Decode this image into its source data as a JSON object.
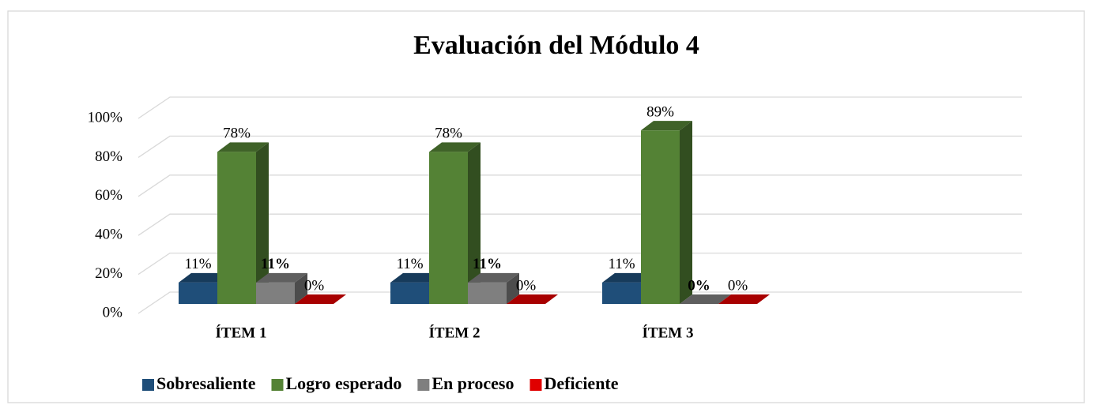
{
  "chart_data": {
    "type": "bar3d",
    "title": "Evaluación del Módulo 4",
    "categories": [
      "ÍTEM 1",
      "ÍTEM 2",
      "ÍTEM 3"
    ],
    "series": [
      {
        "name": "Sobresaliente",
        "color": "#1f4e79",
        "values": [
          11,
          11,
          11
        ],
        "value_labels": [
          "11%",
          "11%",
          "11%"
        ]
      },
      {
        "name": "Logro esperado",
        "color": "#548235",
        "values": [
          78,
          78,
          89
        ],
        "value_labels": [
          "78%",
          "78%",
          "89%"
        ]
      },
      {
        "name": "En proceso",
        "color": "#7f7f7f",
        "values": [
          11,
          11,
          0
        ],
        "value_labels": [
          "11%",
          "11%",
          "0%"
        ],
        "label_bold": true
      },
      {
        "name": "Deficiente",
        "color": "#e00000",
        "values": [
          0,
          0,
          0
        ],
        "value_labels": [
          "0%",
          "0%",
          "0%"
        ]
      }
    ],
    "ylim": [
      0,
      100
    ],
    "yticks": [
      {
        "value": 0,
        "label": "0%"
      },
      {
        "value": 20,
        "label": "20%"
      },
      {
        "value": 40,
        "label": "40%"
      },
      {
        "value": 60,
        "label": "60%"
      },
      {
        "value": 80,
        "label": "80%"
      },
      {
        "value": 100,
        "label": "100%"
      }
    ],
    "grid": true,
    "legend": "bottom"
  }
}
